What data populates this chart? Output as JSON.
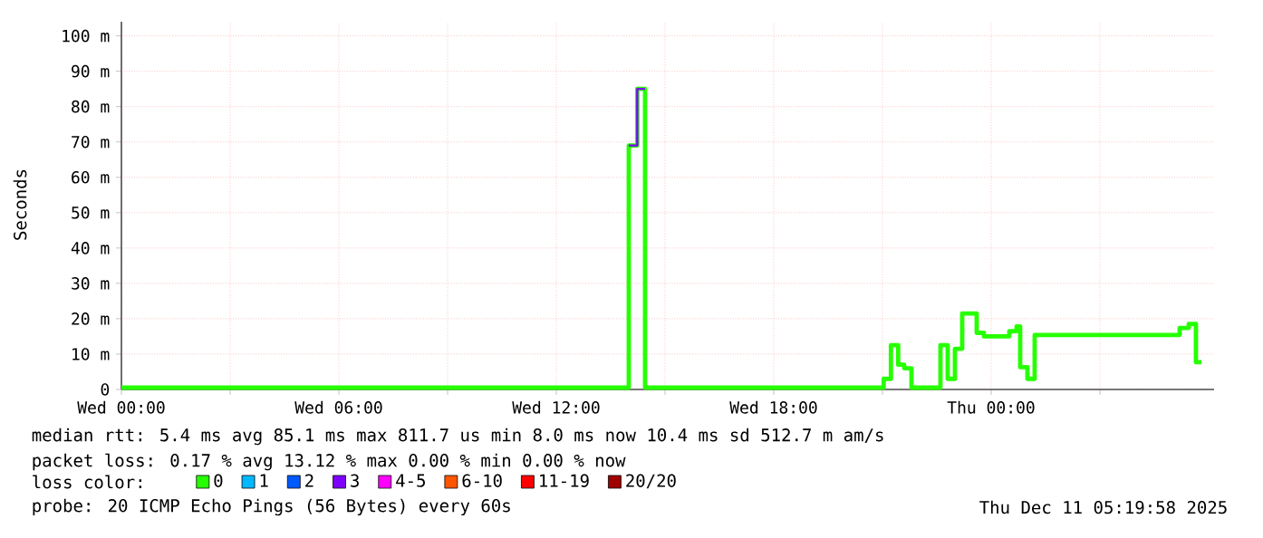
{
  "chart_data": {
    "type": "step",
    "ylabel": "Seconds",
    "legend_title": "loss color:",
    "legend": "bottom",
    "grid": true,
    "xlim": [
      "2025-12-10T00:00",
      "2025-12-11T06:09"
    ],
    "ylim": [
      0,
      104
    ],
    "xticks": [
      {
        "value": "2025-12-10T00:00",
        "label": "Wed 00:00"
      },
      {
        "value": "2025-12-10T03:00",
        "label": null
      },
      {
        "value": "2025-12-10T06:00",
        "label": "Wed 06:00"
      },
      {
        "value": "2025-12-10T09:00",
        "label": null
      },
      {
        "value": "2025-12-10T12:00",
        "label": "Wed 12:00"
      },
      {
        "value": "2025-12-10T15:00",
        "label": null
      },
      {
        "value": "2025-12-10T18:00",
        "label": "Wed 18:00"
      },
      {
        "value": "2025-12-10T21:00",
        "label": null
      },
      {
        "value": "2025-12-11T00:00",
        "label": "Thu 00:00"
      },
      {
        "value": "2025-12-11T03:00",
        "label": null
      }
    ],
    "yticks": [
      0,
      {
        "value": 10,
        "label": "10 m"
      },
      {
        "value": 20,
        "label": "20 m"
      },
      {
        "value": 30,
        "label": "30 m"
      },
      {
        "value": 40,
        "label": "40 m"
      },
      {
        "value": 50,
        "label": "50 m"
      },
      {
        "value": 60,
        "label": "60 m"
      },
      {
        "value": 70,
        "label": "70 m"
      },
      {
        "value": 80,
        "label": "80 m"
      },
      {
        "value": 90,
        "label": "90 m"
      },
      {
        "value": 100,
        "label": "100 m"
      }
    ],
    "series": [
      {
        "name": "0",
        "color": "#26ff00",
        "x": [
          "2025-12-10T00:00",
          "2025-12-10T14:00",
          "2025-12-10T14:14",
          "2025-12-10T14:27",
          "2025-12-10T21:02",
          "2025-12-10T21:14",
          "2025-12-10T21:26",
          "2025-12-10T21:36",
          "2025-12-10T21:48",
          "2025-12-10T22:36",
          "2025-12-10T22:48",
          "2025-12-10T23:00",
          "2025-12-10T23:12",
          "2025-12-10T23:36",
          "2025-12-10T23:48",
          "2025-12-11T00:30",
          "2025-12-11T00:42",
          "2025-12-11T00:48",
          "2025-12-11T01:00",
          "2025-12-11T01:12",
          "2025-12-11T05:12",
          "2025-12-11T05:27",
          "2025-12-11T05:39",
          "2025-12-11T05:48"
        ],
        "values": [
          0.5,
          69,
          85,
          0.5,
          3,
          12.5,
          7,
          6,
          0.5,
          12.5,
          3,
          11.5,
          21.5,
          16,
          15,
          16.5,
          17.8,
          6.3,
          3,
          15.4,
          17.4,
          18.5,
          7.7,
          7.7
        ]
      },
      {
        "name": "1",
        "color": "#00b8ff"
      },
      {
        "name": "2",
        "color": "#0059ff"
      },
      {
        "name": "3",
        "color": "#7e00ff",
        "type": "line",
        "x": [
          "2025-12-10T14:00",
          "2025-12-10T14:14",
          "2025-12-10T14:14",
          "2025-12-10T14:27"
        ],
        "values": [
          69,
          69,
          85,
          85
        ]
      },
      {
        "name": "4-5",
        "color": "#ff00ff"
      },
      {
        "name": "6-10",
        "color": "#ff5500"
      },
      {
        "name": "11-19",
        "color": "#ff0000"
      },
      {
        "name": "20/20",
        "color": "#a10000"
      }
    ],
    "annotations": [
      "median rtt: 5.4 ms avg 85.1 ms max 811.7 us min 8.0 ms now 10.4 ms sd 512.7 m am/s",
      "packet loss: 0.17 % avg 13.12 % max 0.00 % min 0.00 % now",
      "probe: 20 ICMP Echo Pings (56 Bytes) every 60s",
      "Thu Dec 11 05:19:58 2025"
    ]
  }
}
